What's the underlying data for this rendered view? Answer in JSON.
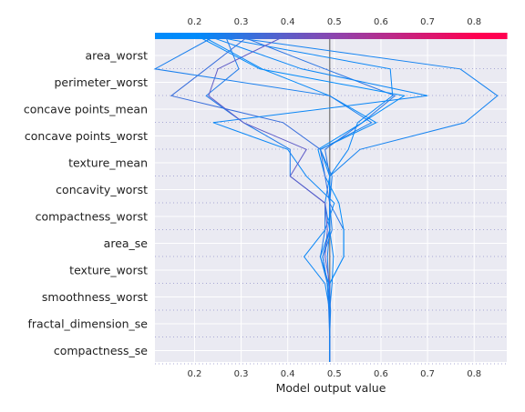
{
  "chart_data": {
    "type": "line",
    "title": "",
    "xlabel": "Model output value",
    "ylabel": "",
    "xlim": [
      0.115,
      0.87
    ],
    "xticks": [
      0.2,
      0.3,
      0.4,
      0.5,
      0.6,
      0.7,
      0.8
    ],
    "xtick_labels": [
      "0.2",
      "0.3",
      "0.4",
      "0.5",
      "0.6",
      "0.7",
      "0.8"
    ],
    "base_value": 0.49,
    "features": [
      "area_worst",
      "perimeter_worst",
      "concave points_mean",
      "concave points_worst",
      "texture_mean",
      "concavity_worst",
      "compactness_worst",
      "area_se",
      "texture_worst",
      "smoothness_worst",
      "fractal_dimension_se",
      "compactness_se"
    ],
    "colormap": {
      "low": "#008bfb",
      "mid": "#8e44ad",
      "high": "#ff0051",
      "range": [
        0.2,
        0.8
      ]
    },
    "series": [
      {
        "values": [
          0.49,
          0.49,
          0.492,
          0.488,
          0.485,
          0.49,
          0.48,
          0.49,
          0.555,
          0.78,
          0.85,
          0.77,
          0.24
        ]
      },
      {
        "values": [
          0.49,
          0.49,
          0.49,
          0.495,
          0.498,
          0.49,
          0.49,
          0.49,
          0.53,
          0.55,
          0.625,
          0.62,
          0.22
        ]
      },
      {
        "values": [
          0.49,
          0.49,
          0.49,
          0.49,
          0.52,
          0.52,
          0.49,
          0.49,
          0.48,
          0.56,
          0.63,
          0.48,
          0.29
        ]
      },
      {
        "values": [
          0.49,
          0.49,
          0.49,
          0.49,
          0.52,
          0.52,
          0.51,
          0.48,
          0.465,
          0.56,
          0.65,
          0.34,
          0.2
        ]
      },
      {
        "values": [
          0.49,
          0.49,
          0.49,
          0.485,
          0.475,
          0.49,
          0.49,
          0.48,
          0.47,
          0.39,
          0.15,
          0.225,
          0.32
        ]
      },
      {
        "values": [
          0.49,
          0.49,
          0.49,
          0.48,
          0.435,
          0.48,
          0.5,
          0.44,
          0.4,
          0.24,
          0.7,
          0.43,
          0.22
        ]
      },
      {
        "values": [
          0.49,
          0.49,
          0.488,
          0.485,
          0.47,
          0.48,
          0.48,
          0.405,
          0.405,
          0.305,
          0.225,
          0.295,
          0.265
        ]
      },
      {
        "values": [
          0.49,
          0.49,
          0.49,
          0.49,
          0.48,
          0.485,
          0.48,
          0.405,
          0.44,
          0.305,
          0.23,
          0.25,
          0.4
        ]
      },
      {
        "values": [
          0.49,
          0.49,
          0.49,
          0.488,
          0.47,
          0.49,
          0.49,
          0.49,
          0.47,
          0.59,
          0.49,
          0.345,
          0.21
        ]
      },
      {
        "values": [
          0.49,
          0.49,
          0.49,
          0.485,
          0.475,
          0.495,
          0.49,
          0.495,
          0.47,
          0.58,
          0.49,
          0.115,
          0.25
        ]
      }
    ]
  }
}
